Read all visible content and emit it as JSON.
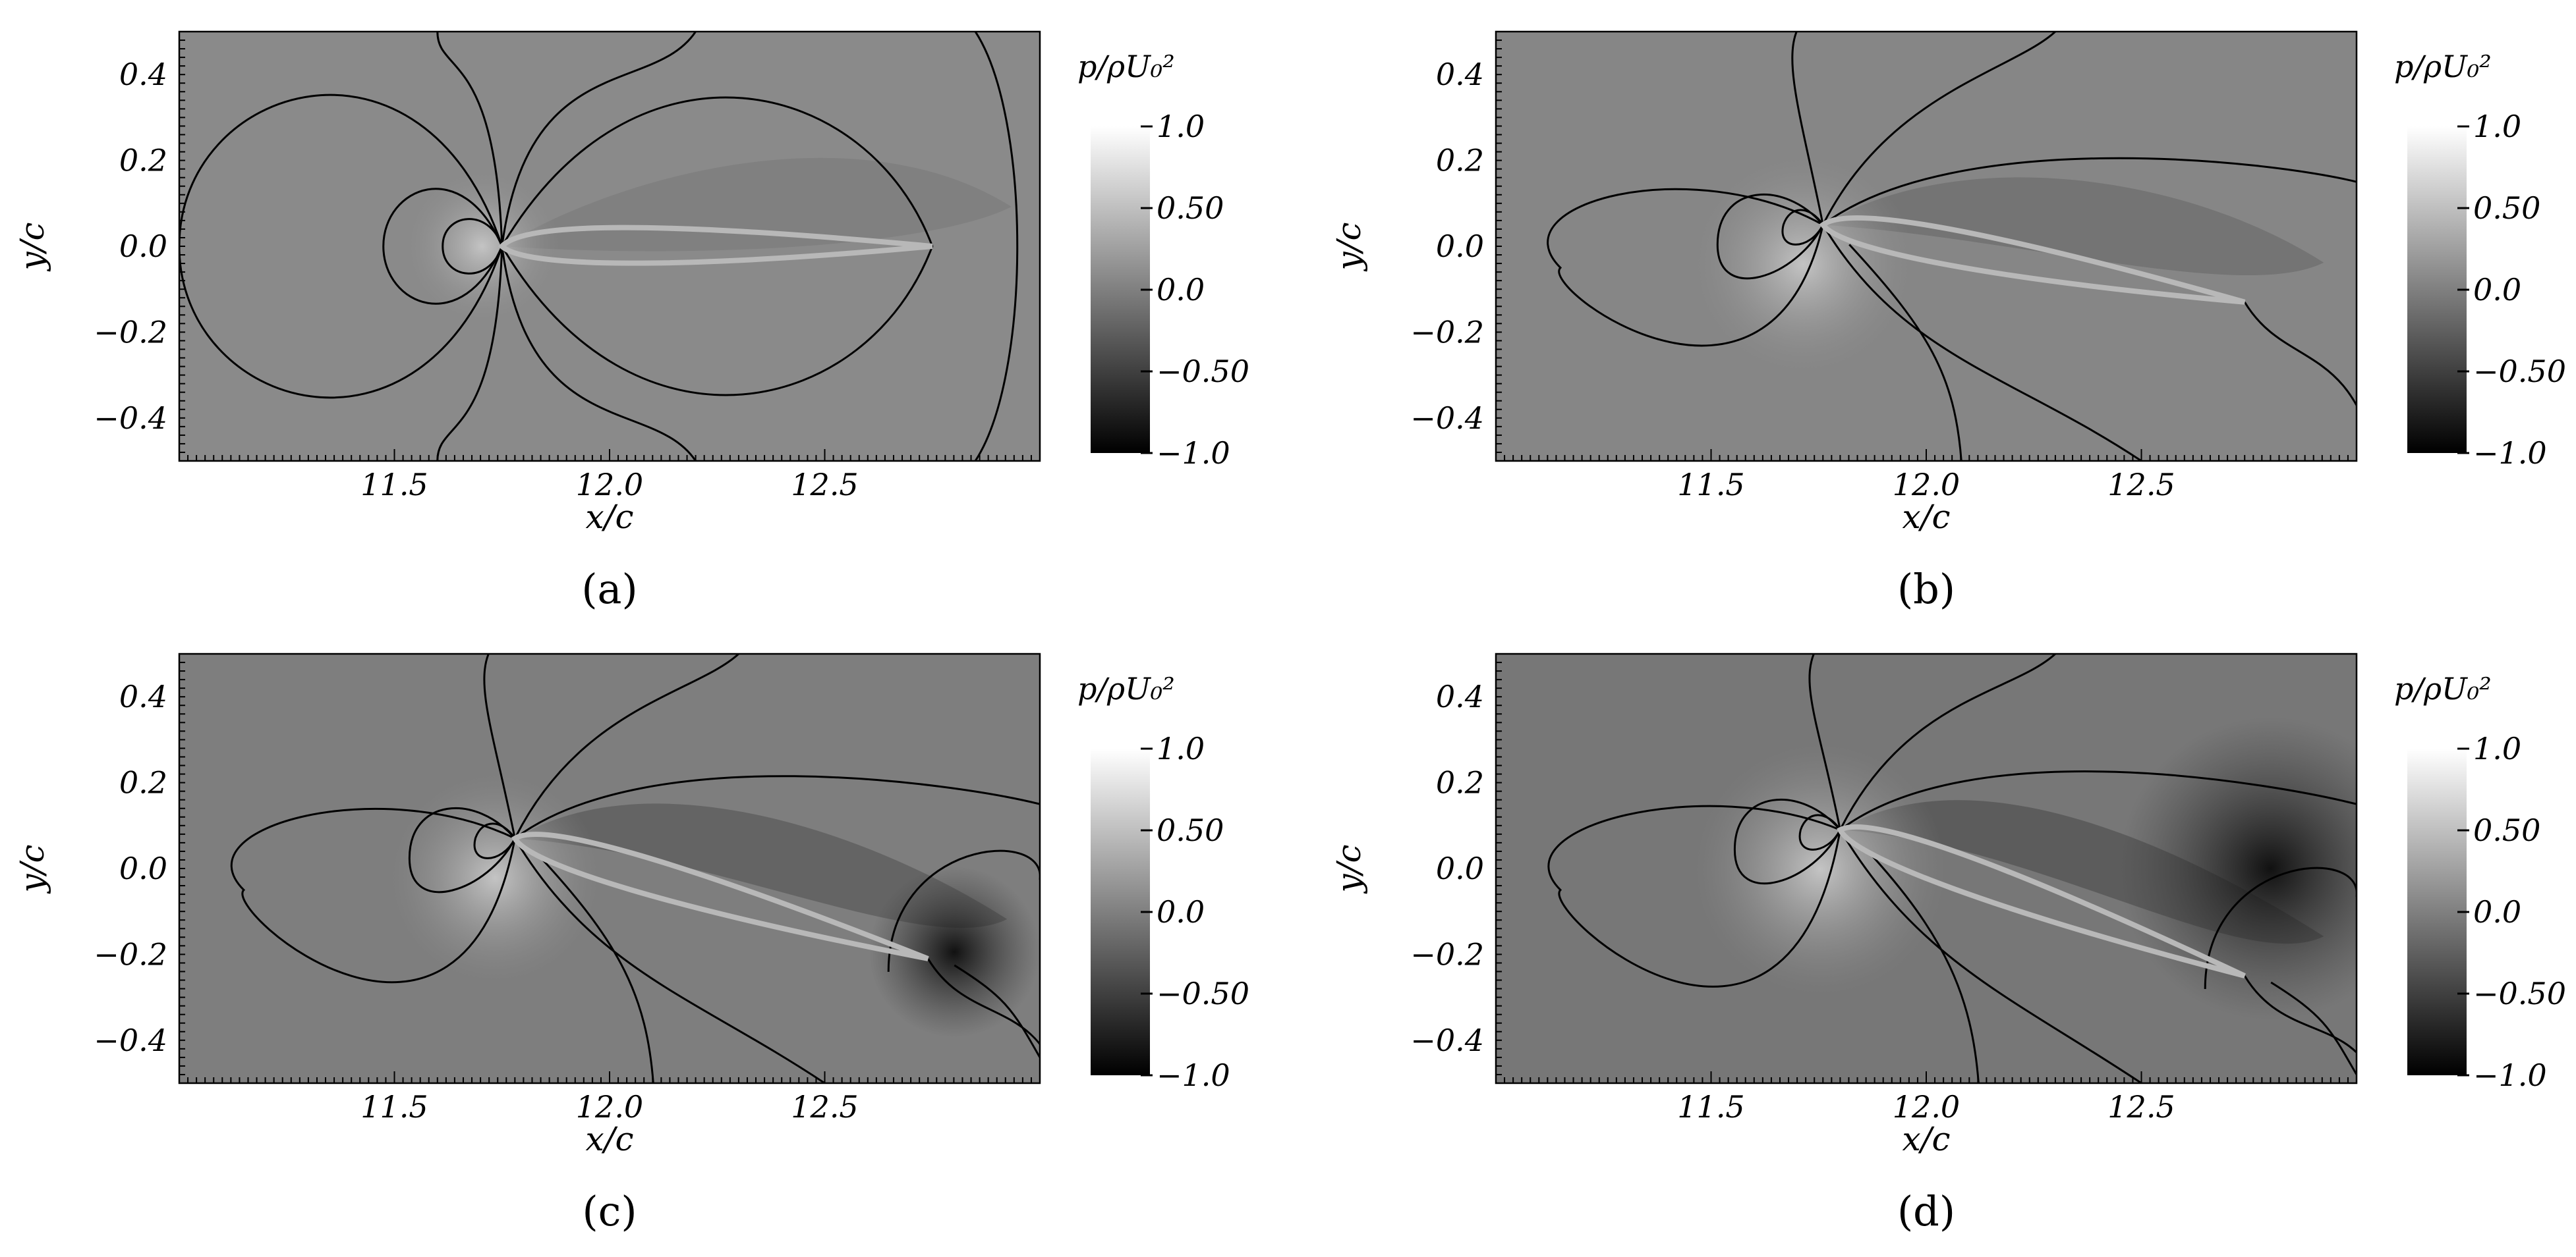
{
  "chart_data": [
    {
      "type": "heatmap",
      "label": "(a)",
      "xlabel": "x/c",
      "ylabel": "y/c",
      "xlim": [
        11.0,
        13.0
      ],
      "ylim": [
        -0.5,
        0.5
      ],
      "xticks": [
        "11.5",
        "12.0",
        "12.5"
      ],
      "yticks": [
        "0.4",
        "0.2",
        "0.0",
        "−0.2",
        "−0.4"
      ],
      "colorbar": {
        "title": "p/ρU₀²",
        "range": [
          -1.0,
          1.0
        ],
        "ticks": [
          "1.0",
          "0.50",
          "0.0",
          "−0.50",
          "−1.0"
        ]
      },
      "airfoil": {
        "leading_edge": [
          11.75,
          0.0
        ],
        "trailing_edge": [
          12.75,
          0.0
        ]
      }
    },
    {
      "type": "heatmap",
      "label": "(b)",
      "xlabel": "x/c",
      "ylabel": "y/c",
      "xlim": [
        11.0,
        13.0
      ],
      "ylim": [
        -0.5,
        0.5
      ],
      "xticks": [
        "11.5",
        "12.0",
        "12.5"
      ],
      "yticks": [
        "0.4",
        "0.2",
        "0.0",
        "−0.2",
        "−0.4"
      ],
      "colorbar": {
        "title": "p/ρU₀²",
        "range": [
          -1.0,
          1.0
        ],
        "ticks": [
          "1.0",
          "0.50",
          "0.0",
          "−0.50",
          "−1.0"
        ]
      },
      "airfoil": {
        "leading_edge": [
          11.76,
          0.05
        ],
        "trailing_edge": [
          12.74,
          -0.13
        ]
      }
    },
    {
      "type": "heatmap",
      "label": "(c)",
      "xlabel": "x/c",
      "ylabel": "y/c",
      "xlim": [
        11.0,
        13.0
      ],
      "ylim": [
        -0.5,
        0.5
      ],
      "xticks": [
        "11.5",
        "12.0",
        "12.5"
      ],
      "yticks": [
        "0.4",
        "0.2",
        "0.0",
        "−0.2",
        "−0.4"
      ],
      "colorbar": {
        "title": "p/ρU₀²",
        "range": [
          -1.0,
          1.0
        ],
        "ticks": [
          "1.0",
          "0.50",
          "0.0",
          "−0.50",
          "−1.0"
        ]
      },
      "airfoil": {
        "leading_edge": [
          11.78,
          0.07
        ],
        "trailing_edge": [
          12.74,
          -0.21
        ]
      }
    },
    {
      "type": "heatmap",
      "label": "(d)",
      "xlabel": "x/c",
      "ylabel": "y/c",
      "xlim": [
        11.0,
        13.0
      ],
      "ylim": [
        -0.5,
        0.5
      ],
      "xticks": [
        "11.5",
        "12.0",
        "12.5"
      ],
      "yticks": [
        "0.4",
        "0.2",
        "0.0",
        "−0.2",
        "−0.4"
      ],
      "colorbar": {
        "title": "p/ρU₀²",
        "range": [
          -1.0,
          1.0
        ],
        "ticks": [
          "1.0",
          "0.50",
          "0.0",
          "−0.50",
          "−1.0"
        ]
      },
      "airfoil": {
        "leading_edge": [
          11.8,
          0.09
        ],
        "trailing_edge": [
          12.74,
          -0.25
        ]
      }
    }
  ]
}
